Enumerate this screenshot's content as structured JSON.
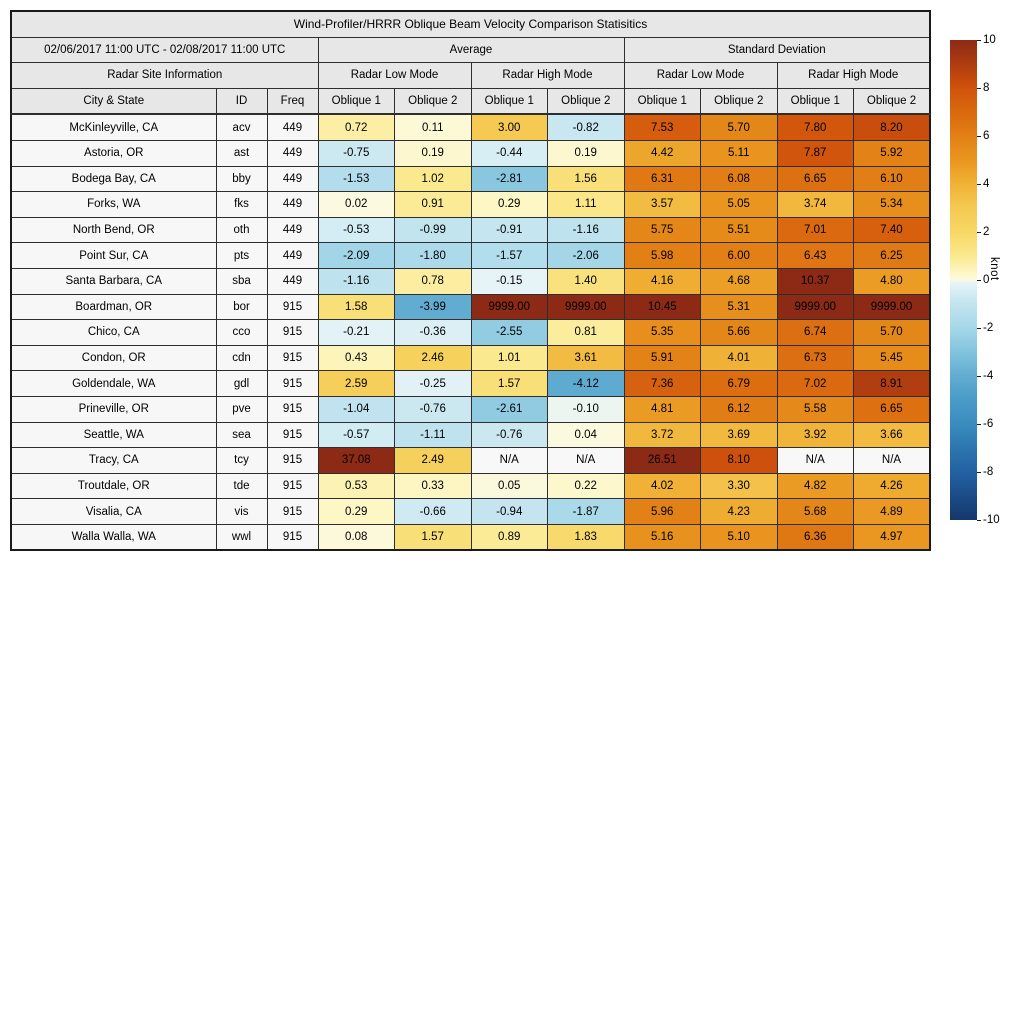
{
  "title": "Wind-Profiler/HRRR Oblique Beam Velocity Comparison Statisitics",
  "table": {
    "date_range": "02/06/2017 11:00 UTC - 02/08/2017 11:00 UTC",
    "group_average": "Average",
    "group_stddev": "Standard Deviation",
    "site_info": "Radar Site Information",
    "modes": [
      "Radar Low Mode",
      "Radar High Mode",
      "Radar Low Mode",
      "Radar High Mode"
    ],
    "columns": [
      "City & State",
      "ID",
      "Freq",
      "Oblique 1",
      "Oblique 2",
      "Oblique 1",
      "Oblique 2",
      "Oblique 1",
      "Oblique 2",
      "Oblique 1",
      "Oblique 2"
    ]
  },
  "na_text": "N/A",
  "colors": {
    "header_bg": "#e7e7e7",
    "label_bg": "#f7f7f7",
    "na_bg": "#f8f8f8",
    "border": "#2e2e2e"
  },
  "colorbar": {
    "label": "knot",
    "ticks": [
      "10",
      "8",
      "6",
      "4",
      "2",
      "0",
      "-2",
      "-4",
      "-6",
      "-8",
      "-10"
    ],
    "range": [
      -10,
      10
    ],
    "stops": [
      {
        "v": -10,
        "c": "#14386b"
      },
      {
        "v": -9,
        "c": "#1b4c87"
      },
      {
        "v": -8,
        "c": "#2361a2"
      },
      {
        "v": -7,
        "c": "#2d76b0"
      },
      {
        "v": -6,
        "c": "#3a8cbe"
      },
      {
        "v": -5,
        "c": "#4a9bc8"
      },
      {
        "v": -4,
        "c": "#62acd1"
      },
      {
        "v": -3,
        "c": "#82c3dd"
      },
      {
        "v": -2,
        "c": "#a6d7e9"
      },
      {
        "v": -1,
        "c": "#c2e4ef"
      },
      {
        "v": -0.5,
        "c": "#d5edf4"
      },
      {
        "v": -0.15,
        "c": "#e6f3f7"
      },
      {
        "v": 0,
        "c": "#fbfae2"
      },
      {
        "v": 0.3,
        "c": "#fdf6c4"
      },
      {
        "v": 1,
        "c": "#fbe98f"
      },
      {
        "v": 2,
        "c": "#f7d765"
      },
      {
        "v": 3,
        "c": "#f5c952"
      },
      {
        "v": 4,
        "c": "#f0b236"
      },
      {
        "v": 5,
        "c": "#e9961f"
      },
      {
        "v": 6,
        "c": "#e28016"
      },
      {
        "v": 7,
        "c": "#da690f"
      },
      {
        "v": 8,
        "c": "#d0520c"
      },
      {
        "v": 9,
        "c": "#ae3c10"
      },
      {
        "v": 10,
        "c": "#8c2a15"
      }
    ]
  },
  "chart_data": {
    "type": "heatmap",
    "title": "Wind-Profiler/HRRR Oblique Beam Velocity Comparison Statisitics",
    "subtitle": "02/06/2017 11:00 UTC - 02/08/2017 11:00 UTC",
    "colorbar_label": "knot",
    "value_range": [
      -10,
      10
    ],
    "value_columns": [
      "Avg Low Oblique 1",
      "Avg Low Oblique 2",
      "Avg High Oblique 1",
      "Avg High Oblique 2",
      "Std Low Oblique 1",
      "Std Low Oblique 2",
      "Std High Oblique 1",
      "Std High Oblique 2"
    ],
    "rows": [
      {
        "city": "McKinleyville, CA",
        "id": "acv",
        "freq": "449",
        "values": [
          "0.72",
          "0.11",
          "3.00",
          "-0.82",
          "7.53",
          "5.70",
          "7.80",
          "8.20"
        ]
      },
      {
        "city": "Astoria, OR",
        "id": "ast",
        "freq": "449",
        "values": [
          "-0.75",
          "0.19",
          "-0.44",
          "0.19",
          "4.42",
          "5.11",
          "7.87",
          "5.92"
        ]
      },
      {
        "city": "Bodega Bay, CA",
        "id": "bby",
        "freq": "449",
        "values": [
          "-1.53",
          "1.02",
          "-2.81",
          "1.56",
          "6.31",
          "6.08",
          "6.65",
          "6.10"
        ]
      },
      {
        "city": "Forks, WA",
        "id": "fks",
        "freq": "449",
        "values": [
          "0.02",
          "0.91",
          "0.29",
          "1.11",
          "3.57",
          "5.05",
          "3.74",
          "5.34"
        ]
      },
      {
        "city": "North Bend, OR",
        "id": "oth",
        "freq": "449",
        "values": [
          "-0.53",
          "-0.99",
          "-0.91",
          "-1.16",
          "5.75",
          "5.51",
          "7.01",
          "7.40"
        ]
      },
      {
        "city": "Point Sur, CA",
        "id": "pts",
        "freq": "449",
        "values": [
          "-2.09",
          "-1.80",
          "-1.57",
          "-2.06",
          "5.98",
          "6.00",
          "6.43",
          "6.25"
        ]
      },
      {
        "city": "Santa Barbara, CA",
        "id": "sba",
        "freq": "449",
        "values": [
          "-1.16",
          "0.78",
          "-0.15",
          "1.40",
          "4.16",
          "4.68",
          "10.37",
          "4.80"
        ]
      },
      {
        "city": "Boardman, OR",
        "id": "bor",
        "freq": "915",
        "values": [
          "1.58",
          "-3.99",
          "9999.00",
          "9999.00",
          "10.45",
          "5.31",
          "9999.00",
          "9999.00"
        ]
      },
      {
        "city": "Chico, CA",
        "id": "cco",
        "freq": "915",
        "values": [
          "-0.21",
          "-0.36",
          "-2.55",
          "0.81",
          "5.35",
          "5.66",
          "6.74",
          "5.70"
        ]
      },
      {
        "city": "Condon, OR",
        "id": "cdn",
        "freq": "915",
        "values": [
          "0.43",
          "2.46",
          "1.01",
          "3.61",
          "5.91",
          "4.01",
          "6.73",
          "5.45"
        ]
      },
      {
        "city": "Goldendale, WA",
        "id": "gdl",
        "freq": "915",
        "values": [
          "2.59",
          "-0.25",
          "1.57",
          "-4.12",
          "7.36",
          "6.79",
          "7.02",
          "8.91"
        ]
      },
      {
        "city": "Prineville, OR",
        "id": "pve",
        "freq": "915",
        "values": [
          "-1.04",
          "-0.76",
          "-2.61",
          "-0.10",
          "4.81",
          "6.12",
          "5.58",
          "6.65"
        ]
      },
      {
        "city": "Seattle, WA",
        "id": "sea",
        "freq": "915",
        "values": [
          "-0.57",
          "-1.11",
          "-0.76",
          "0.04",
          "3.72",
          "3.69",
          "3.92",
          "3.66"
        ]
      },
      {
        "city": "Tracy, CA",
        "id": "tcy",
        "freq": "915",
        "values": [
          "37.08",
          "2.49",
          "N/A",
          "N/A",
          "26.51",
          "8.10",
          "N/A",
          "N/A"
        ]
      },
      {
        "city": "Troutdale, OR",
        "id": "tde",
        "freq": "915",
        "values": [
          "0.53",
          "0.33",
          "0.05",
          "0.22",
          "4.02",
          "3.30",
          "4.82",
          "4.26"
        ]
      },
      {
        "city": "Visalia, CA",
        "id": "vis",
        "freq": "915",
        "values": [
          "0.29",
          "-0.66",
          "-0.94",
          "-1.87",
          "5.96",
          "4.23",
          "5.68",
          "4.89"
        ]
      },
      {
        "city": "Walla Walla, WA",
        "id": "wwl",
        "freq": "915",
        "values": [
          "0.08",
          "1.57",
          "0.89",
          "1.83",
          "5.16",
          "5.10",
          "6.36",
          "4.97"
        ]
      }
    ]
  }
}
